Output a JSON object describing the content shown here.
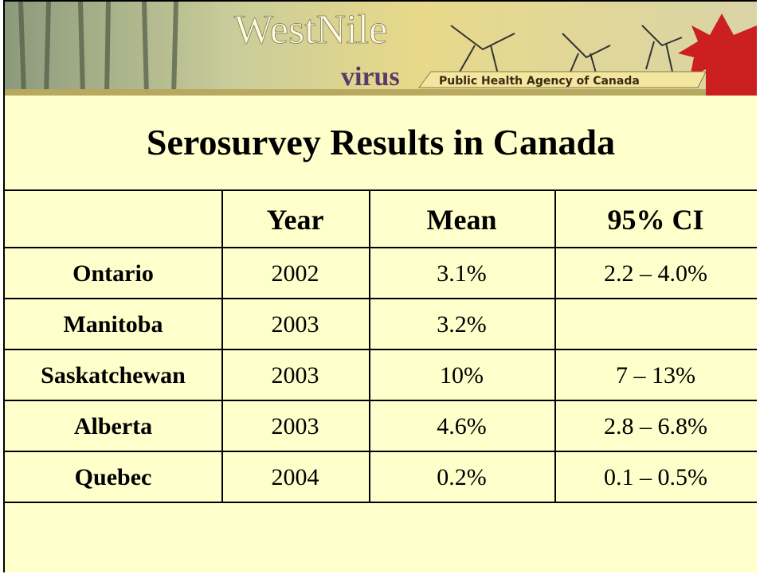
{
  "banner": {
    "west_nile": "WestNile",
    "virus": "virus",
    "agency": "Public Health Agency of Canada"
  },
  "title": "Serosurvey Results in Canada",
  "table": {
    "headers": [
      "Year",
      "Mean",
      "95% CI"
    ],
    "rows": [
      {
        "region": "Ontario",
        "year": "2002",
        "mean": "3.1%",
        "ci": "2.2 – 4.0%"
      },
      {
        "region": "Manitoba",
        "year": "2003",
        "mean": "3.2%"
      },
      {
        "region": "Saskatchewan",
        "year": "2003",
        "mean": "10%",
        "ci": "7 – 13%"
      },
      {
        "region": "Alberta",
        "year": "2003",
        "mean": "4.6%",
        "ci": "2.8 – 6.8%"
      },
      {
        "region": "Quebec",
        "year": "2004",
        "mean": "0.2%",
        "ci": "0.1 – 0.5%"
      }
    ]
  }
}
